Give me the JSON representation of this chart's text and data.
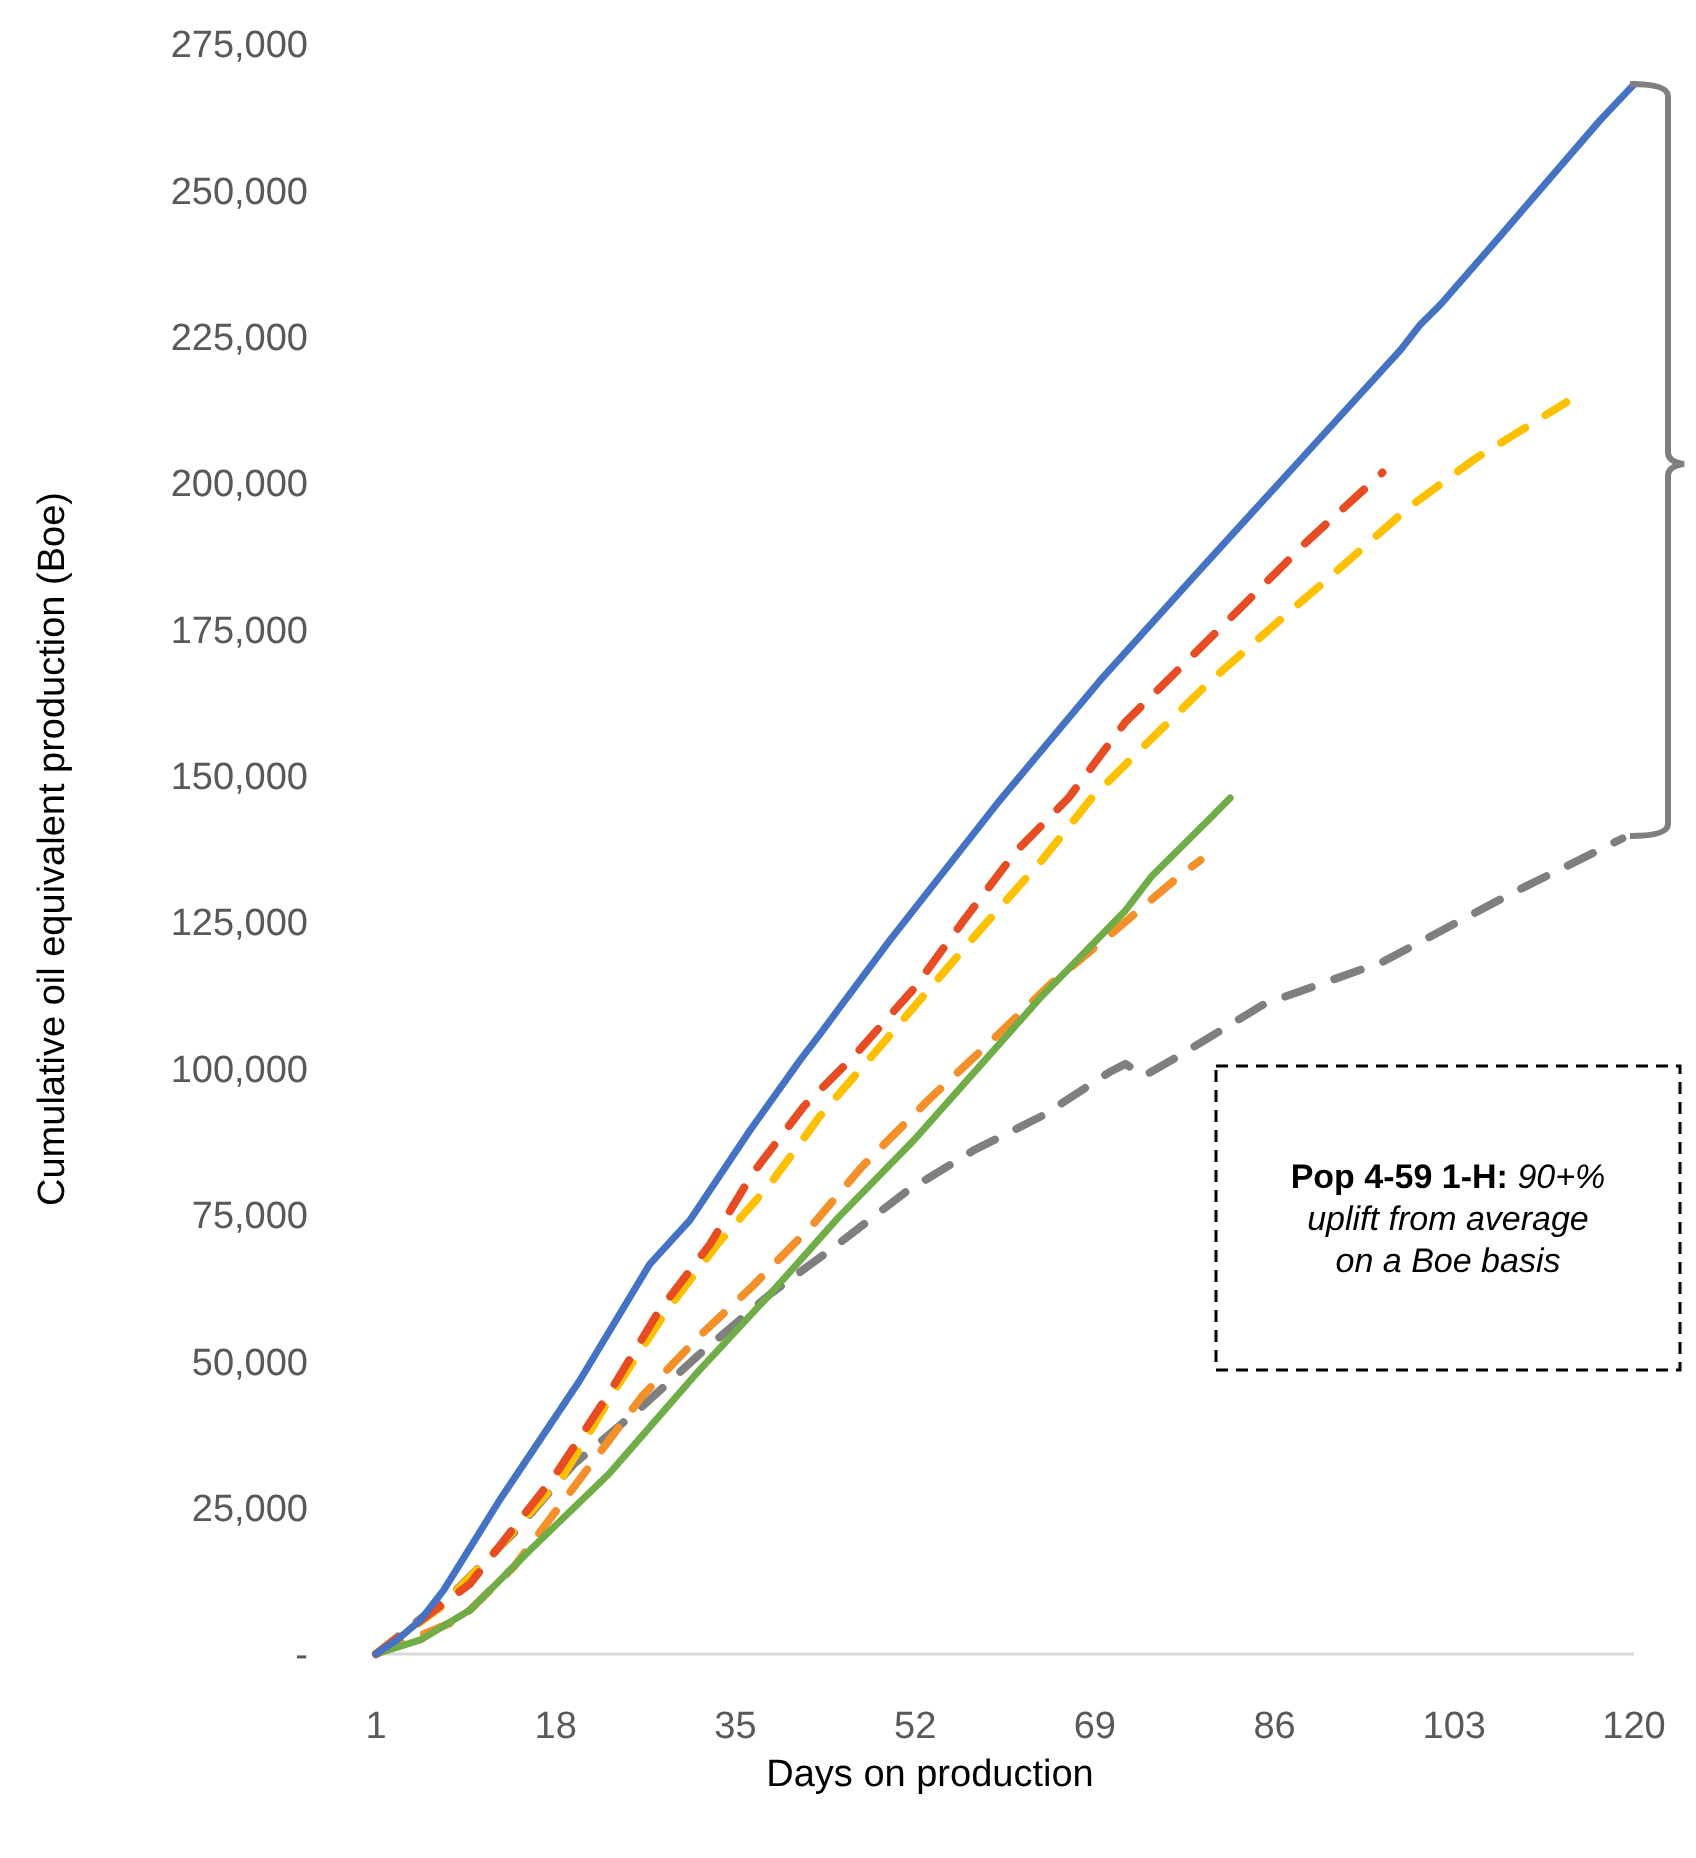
{
  "chart_data": {
    "type": "line",
    "xlabel": "Days on production",
    "ylabel": "Cumulative oil equivalent production (Boe)",
    "x": [
      1,
      3,
      5.2,
      7.4,
      12.7,
      20.3,
      26.9,
      30.7,
      36.4,
      41.1,
      43,
      49.6,
      60,
      69.5,
      78.9,
      88.4,
      97.9,
      99.8,
      101.7,
      107.3,
      116.8,
      120
    ],
    "xlim": [
      1,
      120
    ],
    "xticks": [
      1,
      18,
      35,
      52,
      69,
      86,
      103,
      120
    ],
    "ylim": [
      0,
      275000
    ],
    "yticks": [
      {
        "value": 0,
        "label": "-"
      },
      {
        "value": 25000,
        "label": "25,000"
      },
      {
        "value": 50000,
        "label": "50,000"
      },
      {
        "value": 75000,
        "label": "75,000"
      },
      {
        "value": 100000,
        "label": "100,000"
      },
      {
        "value": 125000,
        "label": "125,000"
      },
      {
        "value": 150000,
        "label": "150,000"
      },
      {
        "value": 175000,
        "label": "175,000"
      },
      {
        "value": 200000,
        "label": "200,000"
      },
      {
        "value": 225000,
        "label": "225,000"
      },
      {
        "value": 250000,
        "label": "250,000"
      },
      {
        "value": 275000,
        "label": "275,000"
      }
    ],
    "grid": false,
    "marker": "none",
    "series": [
      {
        "color": "#7f7f7f",
        "line_style": "dashed",
        "x": [
          1,
          8.4,
          14.1,
          19.7,
          26.2,
          31.6,
          38.3,
          44.7,
          51.1,
          57.6,
          64,
          70.4,
          71.9,
          73.6,
          76.9,
          85,
          96.2,
          108.3,
          118.9
        ],
        "values": [
          0,
          10600,
          20800,
          32400,
          42300,
          51200,
          61500,
          70000,
          78900,
          86100,
          91900,
          99400,
          100800,
          98700,
          102100,
          111000,
          118200,
          129800,
          139300
        ]
      },
      {
        "color": "#f4902a",
        "line_style": "dashed",
        "x": [
          1,
          9.1,
          14.1,
          26.2,
          31.6,
          36.6,
          42.2,
          47,
          53.4,
          59.1,
          64.8,
          71.2,
          77,
          79
        ],
        "values": [
          0,
          6100,
          15000,
          44100,
          54300,
          62800,
          73100,
          83300,
          94900,
          104500,
          114400,
          124000,
          132900,
          135600
        ]
      },
      {
        "color": "#70ad47",
        "line_style": "solid",
        "x": [
          1,
          5.2,
          9.9,
          15.6,
          23,
          24.5,
          31.6,
          38.3,
          44.7,
          51.9,
          57.6,
          64,
          71.9,
          74.4,
          80.1,
          81.8
        ],
        "values": [
          0,
          2400,
          7500,
          17800,
          30700,
          33800,
          48500,
          61500,
          74500,
          87800,
          99400,
          112400,
          127000,
          132900,
          143100,
          146200
        ]
      },
      {
        "color": "#ffc000",
        "line_style": "dashed",
        "x": [
          1,
          7.1,
          13.1,
          18.8,
          23.7,
          28.4,
          33.3,
          38.3,
          43,
          47.9,
          53.4,
          58.3,
          64,
          68.7,
          74.4,
          80,
          86.5,
          92.2,
          98.6,
          105,
          113.6
        ],
        "values": [
          0,
          8000,
          19100,
          30700,
          45400,
          58400,
          70000,
          80300,
          91900,
          102100,
          113700,
          124000,
          135600,
          146200,
          156400,
          166300,
          176600,
          185500,
          195700,
          204200,
          213800
        ]
      },
      {
        "color": "#e84c22",
        "line_style": "dashed",
        "x": [
          1,
          9.9,
          18,
          22.9,
          27.7,
          32.6,
          36.6,
          41.5,
          46.2,
          51.9,
          56.6,
          61.5,
          66.5,
          71.9,
          77.6,
          83.3,
          89,
          96.2
        ],
        "values": [
          0,
          12000,
          30700,
          44100,
          58400,
          70000,
          82000,
          93600,
          102100,
          113700,
          125300,
          137000,
          146200,
          159200,
          169400,
          179600,
          189900,
          201800
        ]
      },
      {
        "color": "#4472c4",
        "line_style": "solid",
        "values": [
          0,
          2400,
          5800,
          10900,
          26300,
          46800,
          66600,
          74100,
          89500,
          101400,
          105900,
          121900,
          145800,
          166300,
          185100,
          203900,
          222700,
          227100,
          230500,
          242100,
          262000,
          268100
        ]
      }
    ],
    "annotations": [
      "Pop 4-59 1-H: 90+% uplift from average on a Boe basis"
    ]
  }
}
